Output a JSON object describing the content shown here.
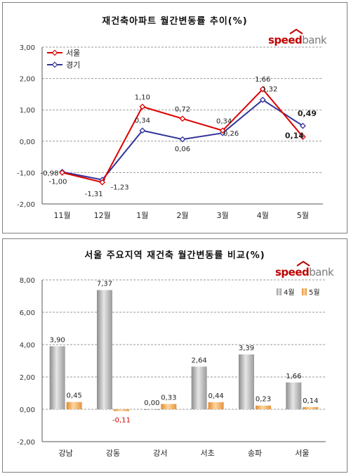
{
  "chart_data": [
    {
      "type": "line",
      "title": "재건축아파트 월간변동률 추이(%)",
      "brand": {
        "speed": "speed",
        "bank": "bank"
      },
      "categories": [
        "11월",
        "12월",
        "1월",
        "2월",
        "3월",
        "4월",
        "5월"
      ],
      "ylim": [
        -2.0,
        3.0
      ],
      "yticks": [
        "3,00",
        "2,00",
        "1,00",
        "0,00",
        "-1,00",
        "-2,00"
      ],
      "legend_position": "top-left",
      "series": [
        {
          "name": "서울",
          "color": "#dd0000",
          "values": [
            -1.0,
            -1.31,
            1.1,
            0.72,
            0.34,
            1.66,
            0.14
          ],
          "labels": [
            "-1,00",
            "-1,31",
            "1,10",
            "0,72",
            "0,34",
            "1,66",
            "0,14"
          ]
        },
        {
          "name": "경기",
          "color": "#333399",
          "values": [
            -0.98,
            -1.23,
            0.34,
            0.06,
            0.26,
            1.32,
            0.49
          ],
          "labels": [
            "-0,98",
            "-1,23",
            "0,34",
            "0,06",
            "0,26",
            "1,32",
            "0,49"
          ]
        }
      ]
    },
    {
      "type": "bar",
      "title": "서울 주요지역 재건축 월간변동률 비교(%)",
      "brand": {
        "speed": "speed",
        "bank": "bank"
      },
      "categories": [
        "강남",
        "강동",
        "강서",
        "서초",
        "송파",
        "서울"
      ],
      "ylim": [
        -2.0,
        8.0
      ],
      "yticks": [
        "8,00",
        "6,00",
        "4,00",
        "2,00",
        "0,00",
        "-2,00"
      ],
      "legend_position": "top-right",
      "series": [
        {
          "name": "4월",
          "color": "#b0b0b0",
          "values": [
            3.9,
            7.37,
            0.0,
            2.64,
            3.39,
            1.66
          ],
          "labels": [
            "3,90",
            "7,37",
            "0,00",
            "2,64",
            "3,39",
            "1,66"
          ]
        },
        {
          "name": "5월",
          "color": "#f4a460",
          "values": [
            0.45,
            -0.11,
            0.33,
            0.44,
            0.23,
            0.14
          ],
          "labels": [
            "0,45",
            "-0,11",
            "0,33",
            "0,44",
            "0,23",
            "0,14"
          ]
        }
      ]
    }
  ]
}
